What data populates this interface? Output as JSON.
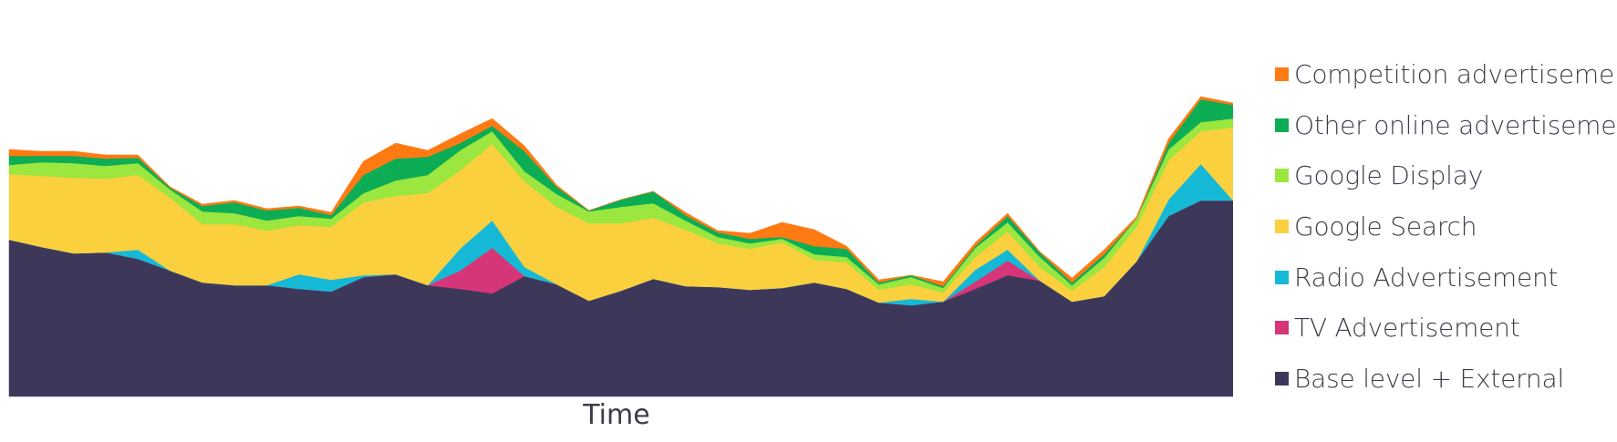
{
  "chart_data": {
    "type": "area",
    "stacked": true,
    "title": "",
    "xlabel": "Time",
    "ylabel": "",
    "ylim": [
      0,
      340
    ],
    "grid": false,
    "legend_position": "right",
    "x": [
      0,
      1,
      2,
      3,
      4,
      5,
      6,
      7,
      8,
      9,
      10,
      11,
      12,
      13,
      14,
      15,
      16,
      17,
      18,
      19,
      20,
      21,
      22,
      23,
      24,
      25,
      26,
      27,
      28,
      29,
      30,
      31,
      32,
      33,
      34,
      35,
      36,
      37,
      38
    ],
    "series": [
      {
        "name": "Base level + External",
        "color": "#3d3859",
        "values": [
          172,
          164,
          157,
          158,
          151,
          138,
          125,
          122,
          122,
          118,
          115,
          131,
          134,
          122,
          118,
          113,
          132,
          123,
          105,
          116,
          129,
          121,
          120,
          117,
          119,
          125,
          118,
          103,
          100,
          104,
          118,
          133,
          127,
          104,
          110,
          148,
          198,
          215,
          215
        ]
      },
      {
        "name": "TV Advertisement",
        "color": "#d63677",
        "values": [
          0,
          0,
          0,
          0,
          0,
          0,
          0,
          0,
          0,
          0,
          0,
          0,
          0,
          0,
          20,
          50,
          0,
          0,
          0,
          0,
          0,
          0,
          0,
          0,
          0,
          0,
          0,
          0,
          0,
          0,
          8,
          16,
          0,
          0,
          0,
          0,
          0,
          0,
          0
        ]
      },
      {
        "name": "Radio Advertisement",
        "color": "#16b9d5",
        "values": [
          0,
          0,
          0,
          0,
          10,
          0,
          0,
          0,
          0,
          16,
          13,
          2,
          0,
          0,
          24,
          30,
          10,
          0,
          0,
          0,
          0,
          0,
          0,
          0,
          0,
          0,
          0,
          0,
          7,
          0,
          13,
          12,
          0,
          0,
          0,
          0,
          18,
          40,
          0
        ]
      },
      {
        "name": "Google Search",
        "color": "#fad03e",
        "values": [
          72,
          78,
          83,
          81,
          82,
          80,
          64,
          67,
          60,
          54,
          58,
          80,
          86,
          101,
          86,
          84,
          94,
          85,
          85,
          74,
          67,
          62,
          48,
          45,
          50,
          25,
          29,
          14,
          16,
          10,
          14,
          20,
          15,
          12,
          32,
          38,
          43,
          36,
          80
        ]
      },
      {
        "name": "Google Display",
        "color": "#9be63f",
        "values": [
          10,
          15,
          16,
          14,
          13,
          9,
          14,
          12,
          11,
          10,
          9,
          10,
          17,
          20,
          22,
          14,
          11,
          14,
          13,
          18,
          16,
          10,
          7,
          6,
          4,
          6,
          6,
          6,
          8,
          5,
          10,
          10,
          11,
          6,
          10,
          9,
          12,
          10,
          10
        ]
      },
      {
        "name": "Other online advertisement",
        "color": "#0cad55",
        "values": [
          10,
          7,
          8,
          8,
          6,
          2,
          6,
          12,
          11,
          9,
          4,
          20,
          24,
          20,
          8,
          6,
          22,
          8,
          1,
          8,
          13,
          6,
          5,
          5,
          2,
          9,
          9,
          2,
          2,
          2,
          2,
          7,
          5,
          3,
          4,
          0,
          7,
          25,
          15
        ]
      },
      {
        "name": "Competition advertisement",
        "color": "#ff7a12",
        "values": [
          7,
          5,
          5,
          4,
          3,
          1,
          2,
          2,
          2,
          2,
          3,
          15,
          17,
          7,
          10,
          8,
          6,
          2,
          0,
          0,
          0,
          3,
          2,
          6,
          16,
          18,
          3,
          3,
          0,
          5,
          4,
          3,
          1,
          5,
          5,
          2,
          5,
          3,
          2
        ]
      }
    ]
  }
}
